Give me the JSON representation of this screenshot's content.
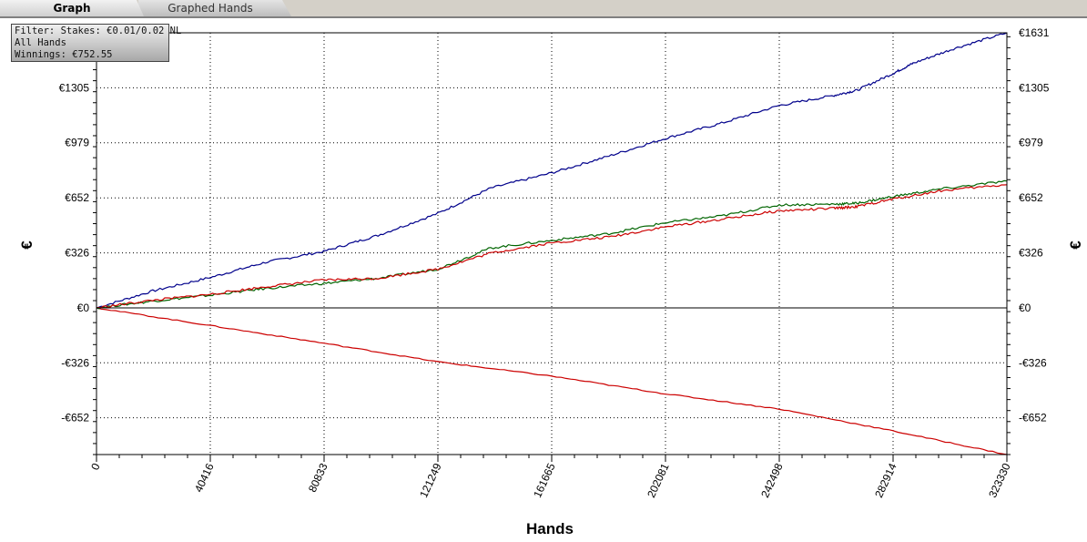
{
  "tabs": [
    {
      "label": "Graph",
      "active": true
    },
    {
      "label": "Graphed Hands",
      "active": false
    }
  ],
  "filter_box": {
    "line1": "Filter: Stakes: €0.01/0.02 NL",
    "line2": "All Hands",
    "line3": "Winnings: €752.55"
  },
  "chart_data": {
    "type": "line",
    "xlabel": "Hands",
    "ylabel": "€",
    "xlim": [
      0,
      323330
    ],
    "ylim": [
      -870,
      1631
    ],
    "x_ticks": [
      0,
      40416,
      80833,
      121249,
      161665,
      202081,
      242498,
      282914,
      323330
    ],
    "y_ticks": [
      {
        "value": 1631,
        "label": "€1631"
      },
      {
        "value": 1305,
        "label": "€1305"
      },
      {
        "value": 979,
        "label": "€979"
      },
      {
        "value": 652,
        "label": "€652"
      },
      {
        "value": 326,
        "label": "€326"
      },
      {
        "value": 0,
        "label": "€0"
      },
      {
        "value": -326,
        "label": "-€326"
      },
      {
        "value": -652,
        "label": "-€652"
      }
    ],
    "grid": true,
    "series": [
      {
        "color": "#00008b",
        "x": [
          0,
          20000,
          40416,
          60000,
          80833,
          100000,
          121249,
          140000,
          161665,
          182000,
          202081,
          222000,
          242498,
          262000,
          270000,
          282914,
          290000,
          305000,
          323330
        ],
        "y": [
          0,
          100,
          180,
          270,
          335,
          430,
          560,
          710,
          800,
          900,
          1005,
          1095,
          1200,
          1260,
          1290,
          1390,
          1450,
          1540,
          1631
        ]
      },
      {
        "color": "#006400",
        "x": [
          0,
          20000,
          40416,
          60000,
          80833,
          100000,
          121249,
          140000,
          161665,
          182000,
          202081,
          222000,
          242498,
          262000,
          270000,
          282914,
          300000,
          323330
        ],
        "y": [
          0,
          40,
          75,
          115,
          145,
          175,
          230,
          355,
          400,
          440,
          505,
          545,
          610,
          615,
          620,
          660,
          705,
          752
        ]
      },
      {
        "color": "#cc0000",
        "x": [
          0,
          20000,
          40416,
          60000,
          80833,
          100000,
          121249,
          140000,
          161665,
          182000,
          202081,
          222000,
          242498,
          262000,
          270000,
          282914,
          300000,
          323330
        ],
        "y": [
          0,
          45,
          80,
          125,
          165,
          175,
          230,
          325,
          385,
          420,
          480,
          525,
          575,
          590,
          600,
          645,
          695,
          730
        ]
      },
      {
        "color": "#cc0000",
        "x": [
          0,
          40416,
          80833,
          121249,
          161665,
          202081,
          242498,
          282914,
          323330
        ],
        "y": [
          0,
          -105,
          -210,
          -320,
          -405,
          -510,
          -600,
          -730,
          -870
        ]
      }
    ]
  }
}
